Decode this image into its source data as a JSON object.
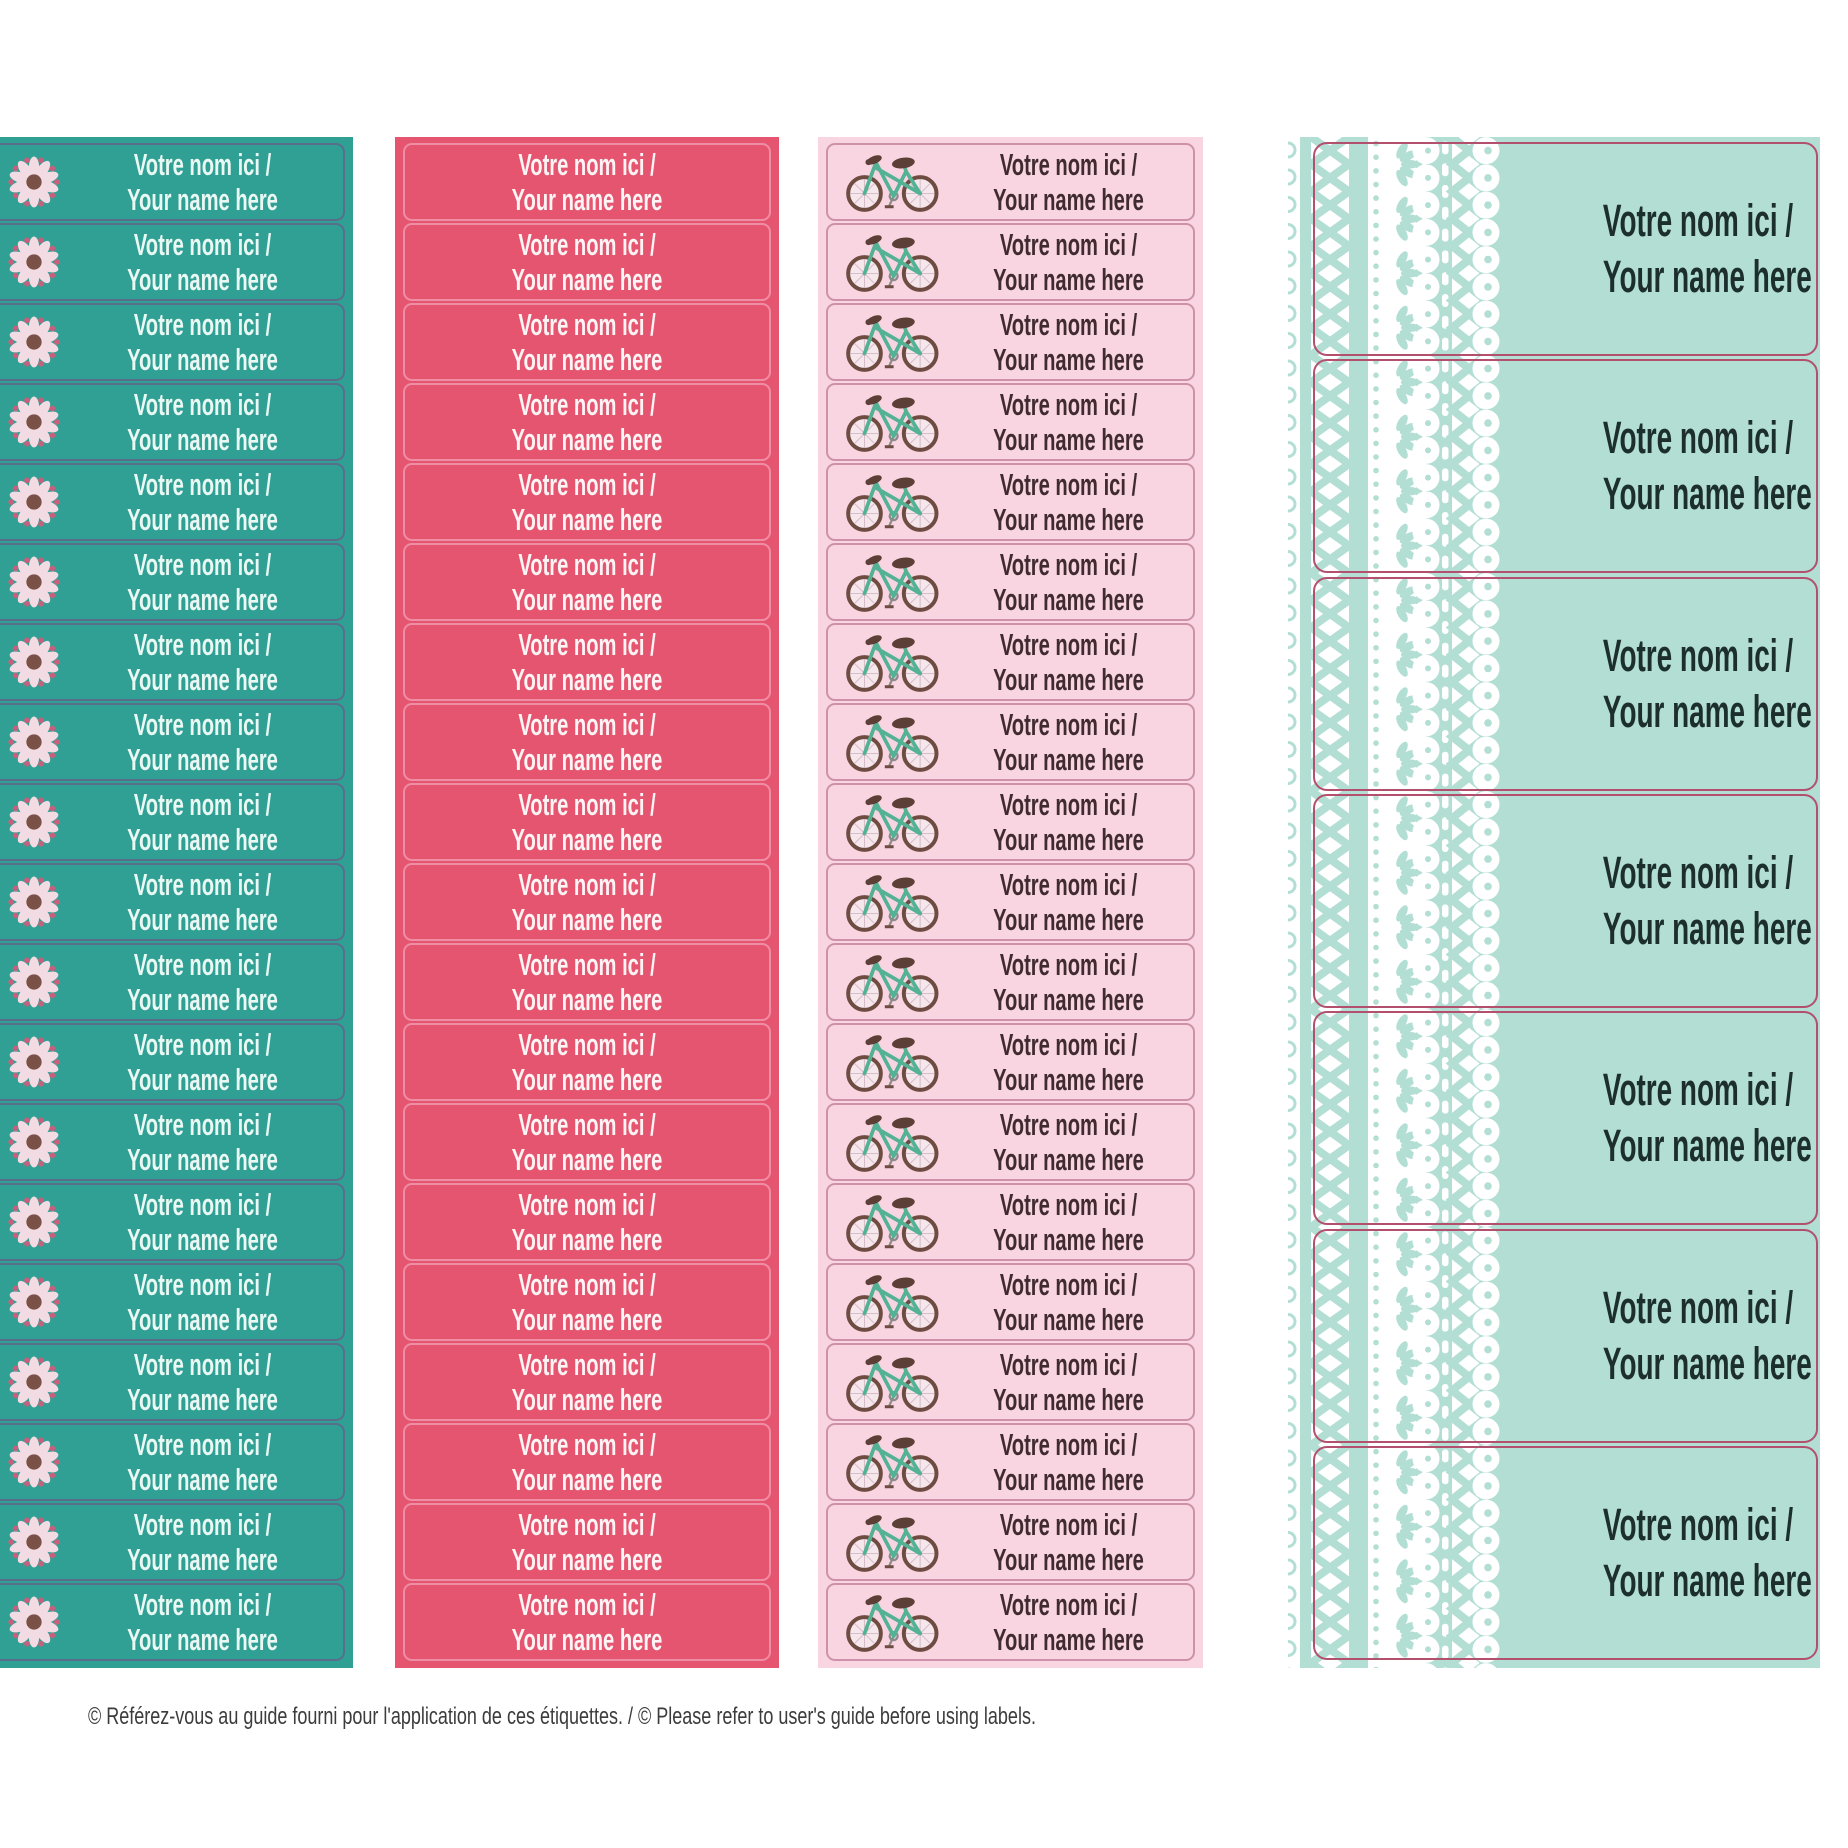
{
  "label_text": {
    "line1": "Votre nom ici /",
    "line2": "Your name here"
  },
  "caption": "© Référez-vous au guide fourni pour l'application de ces étiquettes. / © Please refer to user's guide before using labels.",
  "page_background": "#ffffff",
  "sheets": [
    {
      "id": "sheet-flower",
      "name": "teal-flower-label-sheet",
      "label_count": 19,
      "icon": "flower-icon",
      "bg": "#2fa093",
      "border_color": "#5a6e8c",
      "text_color": "#eaf8f3"
    },
    {
      "id": "sheet-red",
      "name": "red-label-sheet",
      "label_count": 19,
      "icon": null,
      "bg": "#e65570",
      "border_color": "#ef8da4",
      "text_color": "#fdf4f5"
    },
    {
      "id": "sheet-bike",
      "name": "pink-bicycle-label-sheet",
      "label_count": 19,
      "icon": "bicycle-icon",
      "bg": "#f9d5e1",
      "border_color": "#cd92a9",
      "text_color": "#402b31"
    },
    {
      "id": "sheet-lace",
      "name": "mint-lace-label-sheet",
      "label_count": 7,
      "icon": "lace-pattern",
      "bg": "#b2ded4",
      "border_color": "#b3506e",
      "text_color": "#1d2f2c"
    }
  ],
  "icon_colors": {
    "flower_petals": "#f3dbe4",
    "flower_center": "#7a5146",
    "flower_dots": "#c7607c",
    "bike_frame": "#54b294",
    "bike_rim": "#6e4c42",
    "bike_seat": "#5c3f37",
    "lace_white": "#ffffff"
  }
}
